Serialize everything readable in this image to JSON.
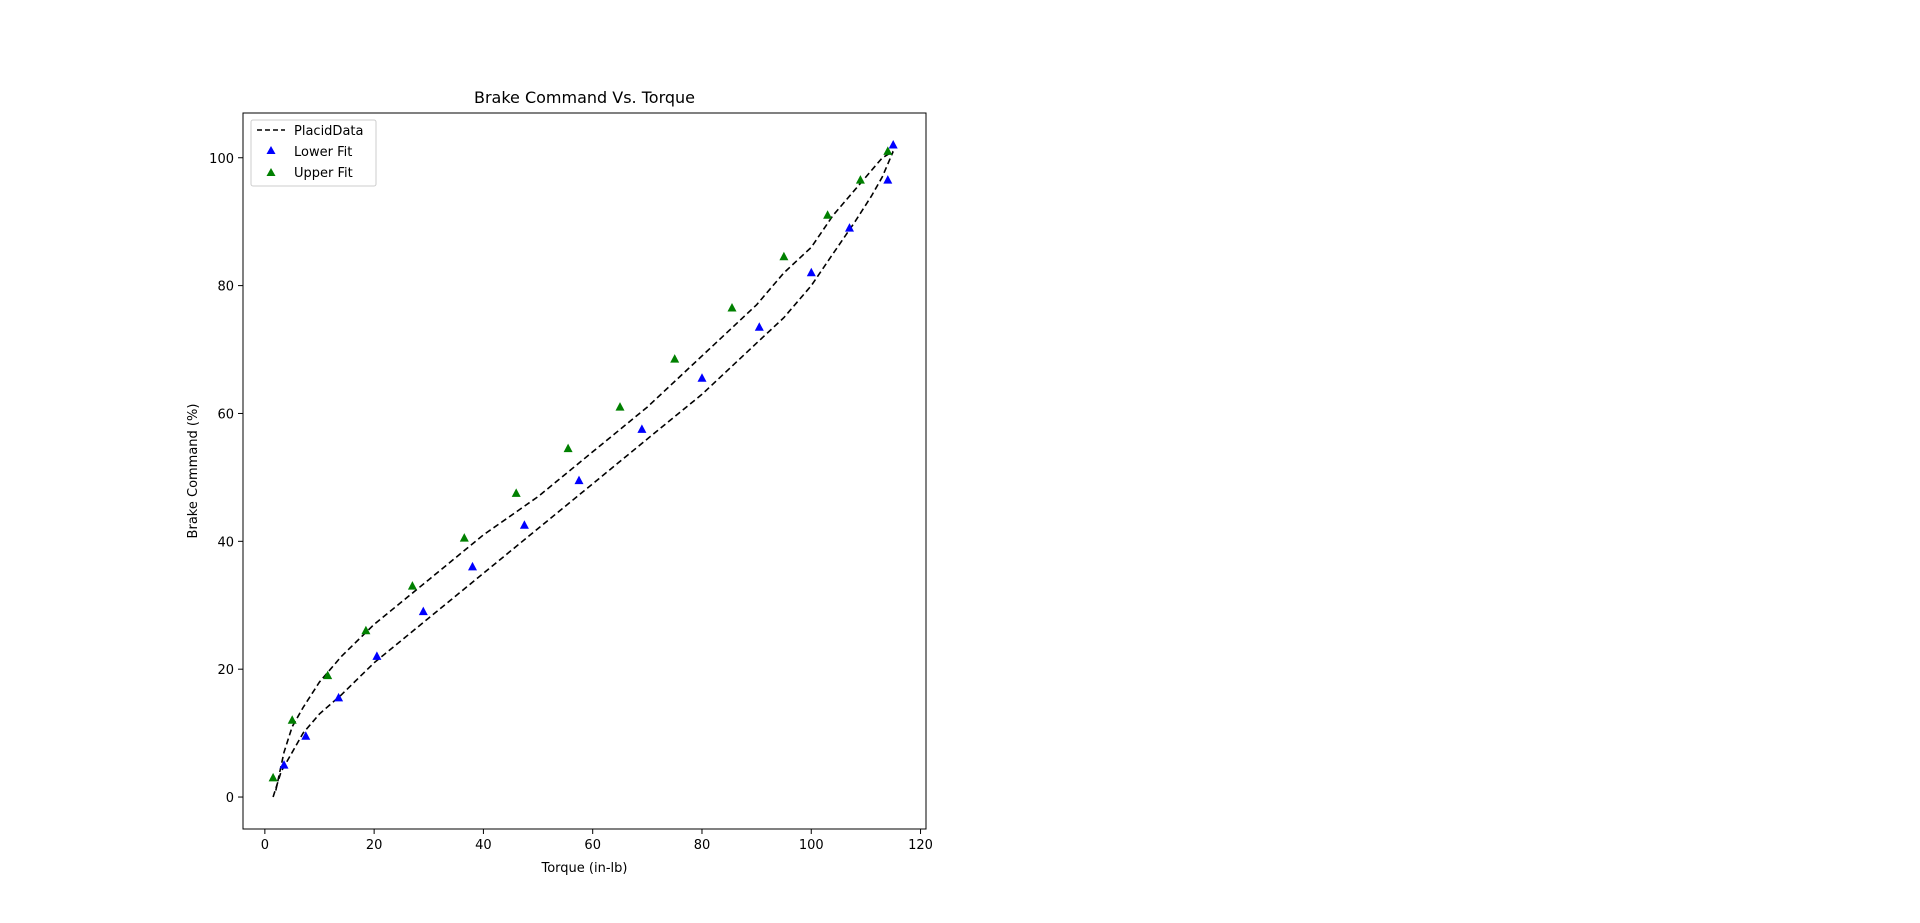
{
  "chart_data": {
    "type": "scatter",
    "title": "Brake Command Vs. Torque",
    "xlabel": "Torque (in-lb)",
    "ylabel": "Brake Command (%)",
    "xlim": [
      -4,
      121
    ],
    "ylim": [
      -5,
      107
    ],
    "xticks": [
      0,
      20,
      40,
      60,
      80,
      100,
      120
    ],
    "yticks": [
      0,
      20,
      40,
      60,
      80,
      100
    ],
    "grid": false,
    "legend_position": "upper-left",
    "series": [
      {
        "name": "PlacidData",
        "kind": "dashed-line",
        "color": "#000000",
        "segments": [
          {
            "x": [
              1.5,
              3,
              5,
              7,
              10,
              14,
              20,
              30,
              40,
              50,
              60,
              70,
              80,
              90,
              95,
              100,
              104,
              108,
              111,
              113,
              115
            ],
            "y": [
              0,
              4,
              7,
              10,
              13,
              16,
              21,
              28,
              35,
              42,
              49,
              56,
              63,
              71,
              75,
              80,
              85,
              90,
              94,
              97,
              101
            ]
          },
          {
            "x": [
              2,
              2.5,
              3.5,
              5,
              7,
              10,
              14,
              20,
              30,
              40,
              50,
              60,
              70,
              80,
              90,
              95,
              100,
              104,
              108,
              111,
              113,
              115
            ],
            "y": [
              1,
              3,
              7,
              11,
              14,
              18,
              22,
              27,
              34,
              41,
              47,
              54,
              61,
              69,
              77,
              82,
              86,
              91,
              95,
              98,
              100,
              101
            ]
          }
        ]
      },
      {
        "name": "Lower Fit",
        "kind": "triangle-marker",
        "color": "#0000ff",
        "x": [
          3.5,
          7.5,
          13.5,
          20.5,
          29,
          38,
          47.5,
          57.5,
          69,
          80,
          90.5,
          100,
          107,
          114,
          115
        ],
        "y": [
          5,
          9.5,
          15.5,
          22,
          29,
          36,
          42.5,
          49.5,
          57.5,
          65.5,
          73.5,
          82,
          89,
          96.5,
          102
        ]
      },
      {
        "name": "Upper Fit",
        "kind": "triangle-marker",
        "color": "#008000",
        "x": [
          1.5,
          5,
          11.5,
          18.5,
          27,
          36.5,
          46,
          55.5,
          65,
          75,
          85.5,
          95,
          103,
          109,
          114
        ],
        "y": [
          3,
          12,
          19,
          26,
          33,
          40.5,
          47.5,
          54.5,
          61,
          68.5,
          76.5,
          84.5,
          91,
          96.5,
          101
        ]
      }
    ]
  }
}
